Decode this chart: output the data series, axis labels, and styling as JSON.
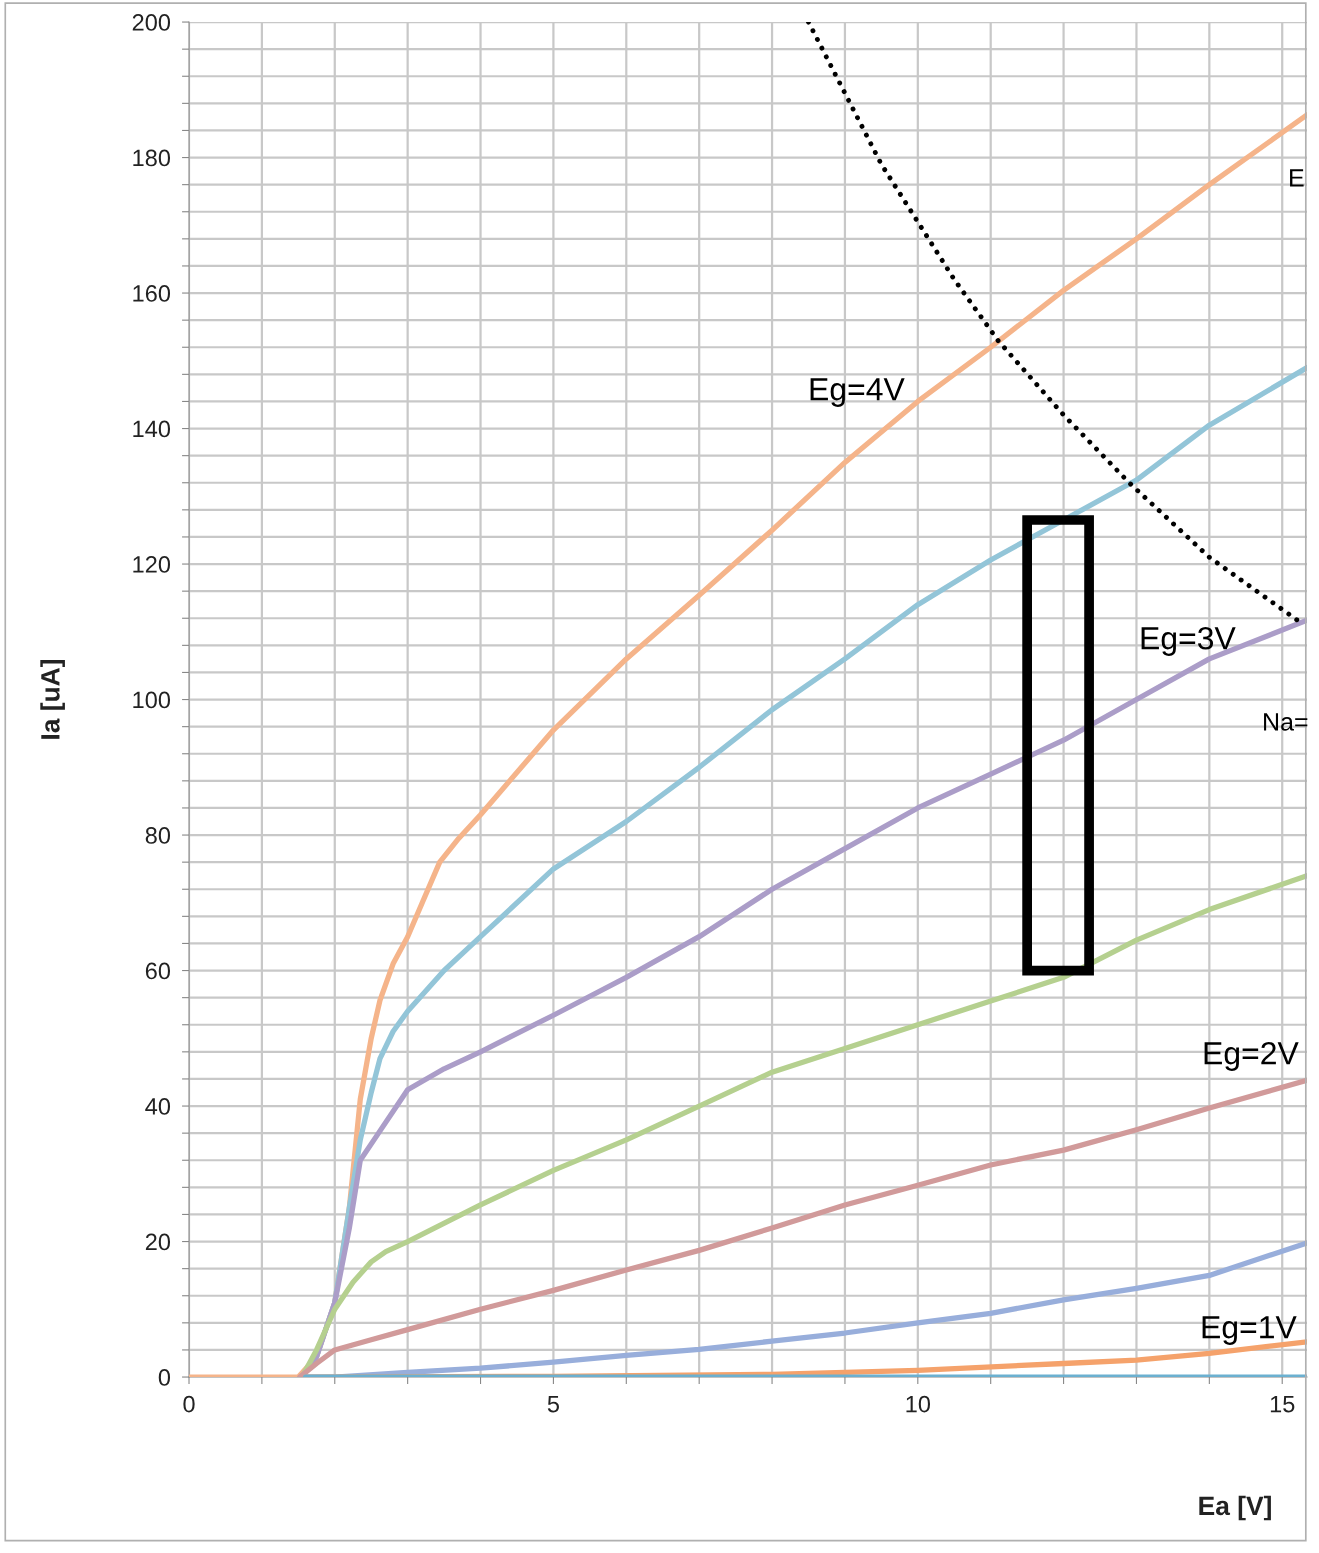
{
  "chart_data": {
    "type": "line",
    "xlabel": "Ea [V]",
    "ylabel": "Ia [uA]",
    "xlim": [
      0,
      15.34
    ],
    "ylim": [
      0,
      200
    ],
    "xticks": [
      0,
      {
        "value": 1,
        "label": null
      },
      {
        "value": 2,
        "label": null
      },
      {
        "value": 3,
        "label": null
      },
      {
        "value": 4,
        "label": null
      },
      5,
      {
        "value": 6,
        "label": null
      },
      {
        "value": 7,
        "label": null
      },
      {
        "value": 8,
        "label": null
      },
      {
        "value": 9,
        "label": null
      },
      10,
      {
        "value": 11,
        "label": null
      },
      {
        "value": 12,
        "label": null
      },
      {
        "value": 13,
        "label": null
      },
      {
        "value": 14,
        "label": null
      },
      15
    ],
    "yticks": [
      0,
      {
        "value": 4,
        "label": null
      },
      {
        "value": 8,
        "label": null
      },
      {
        "value": 12,
        "label": null
      },
      {
        "value": 16,
        "label": null
      },
      20,
      {
        "value": 24,
        "label": null
      },
      {
        "value": 28,
        "label": null
      },
      {
        "value": 32,
        "label": null
      },
      {
        "value": 36,
        "label": null
      },
      40,
      {
        "value": 44,
        "label": null
      },
      {
        "value": 48,
        "label": null
      },
      {
        "value": 52,
        "label": null
      },
      {
        "value": 56,
        "label": null
      },
      60,
      {
        "value": 64,
        "label": null
      },
      {
        "value": 68,
        "label": null
      },
      {
        "value": 72,
        "label": null
      },
      {
        "value": 76,
        "label": null
      },
      80,
      {
        "value": 84,
        "label": null
      },
      {
        "value": 88,
        "label": null
      },
      {
        "value": 92,
        "label": null
      },
      {
        "value": 96,
        "label": null
      },
      100,
      {
        "value": 104,
        "label": null
      },
      {
        "value": 108,
        "label": null
      },
      {
        "value": 112,
        "label": null
      },
      {
        "value": 116,
        "label": null
      },
      120,
      {
        "value": 124,
        "label": null
      },
      {
        "value": 128,
        "label": null
      },
      {
        "value": 132,
        "label": null
      },
      {
        "value": 136,
        "label": null
      },
      140,
      {
        "value": 144,
        "label": null
      },
      {
        "value": 148,
        "label": null
      },
      {
        "value": 152,
        "label": null
      },
      {
        "value": 156,
        "label": null
      },
      160,
      {
        "value": 164,
        "label": null
      },
      {
        "value": 168,
        "label": null
      },
      {
        "value": 172,
        "label": null
      },
      {
        "value": 176,
        "label": null
      },
      180,
      {
        "value": 184,
        "label": null
      },
      {
        "value": 188,
        "label": null
      },
      {
        "value": 192,
        "label": null
      },
      {
        "value": 196,
        "label": null
      },
      200
    ],
    "grid": true,
    "marker": "none",
    "line_style": "solid",
    "series": [
      {
        "color": "#f5b48a",
        "x": [
          0,
          1.5,
          1.75,
          2,
          2.2,
          2.35,
          2.5,
          2.62,
          2.8,
          3,
          3.2,
          3.44,
          3.7,
          4,
          5,
          6,
          7,
          8,
          9,
          10,
          11,
          12,
          13,
          14,
          15.34
        ],
        "values": [
          0,
          0,
          3,
          11,
          25,
          41,
          50,
          55.6,
          61,
          65,
          70,
          76,
          79.5,
          83,
          95.5,
          106,
          115.4,
          125,
          135,
          144,
          152,
          160.4,
          168,
          176,
          186.3
        ]
      },
      {
        "color": "#93c5d8",
        "x": [
          1.55,
          1.75,
          2,
          2.2,
          2.35,
          2.5,
          2.62,
          2.8,
          3,
          3.5,
          4,
          5,
          6,
          7,
          8,
          9,
          10,
          11,
          12,
          13,
          14,
          15.34
        ],
        "values": [
          0,
          3,
          11,
          25,
          35,
          42,
          47,
          51,
          54,
          60,
          65,
          75,
          82,
          90,
          98.5,
          106,
          114,
          120.6,
          126.5,
          132.4,
          140.5,
          149
        ]
      },
      {
        "color": "#ab9dc8",
        "x": [
          1.55,
          1.75,
          2,
          2.2,
          2.35,
          2.6,
          3,
          3.5,
          4,
          5,
          6,
          7,
          8,
          9,
          10,
          11,
          12,
          13,
          14,
          15.34
        ],
        "values": [
          0,
          3,
          11,
          22,
          32,
          36,
          42.4,
          45.5,
          48,
          53.4,
          59,
          65,
          72,
          78,
          84,
          89,
          94,
          100,
          106,
          111.7
        ]
      },
      {
        "color": "#b5d08f",
        "x": [
          1.55,
          1.75,
          2,
          2.25,
          2.5,
          2.7,
          3,
          4,
          5,
          6,
          7,
          8,
          9,
          10,
          11,
          12,
          13,
          14,
          15.34
        ],
        "values": [
          0,
          4,
          10,
          14,
          17,
          18.5,
          20,
          25.4,
          30.5,
          35,
          40,
          45,
          48.5,
          52,
          55.5,
          59,
          64.5,
          69,
          74
        ]
      },
      {
        "color": "#d19a9a",
        "x": [
          1.52,
          1.75,
          2,
          2.5,
          3,
          4,
          5,
          6,
          7,
          8,
          9,
          10,
          11,
          12,
          13,
          14,
          15.34
        ],
        "values": [
          0,
          2,
          4,
          5.5,
          7,
          10,
          12.8,
          15.8,
          18.7,
          22,
          25.4,
          28.3,
          31.3,
          33.5,
          36.5,
          39.7,
          43.8
        ]
      },
      {
        "color": "#98aedb",
        "x": [
          1.6,
          2,
          3,
          4,
          5,
          6,
          7,
          8,
          9,
          10,
          11,
          12,
          13,
          14,
          15.34
        ],
        "values": [
          0,
          0,
          0.7,
          1.3,
          2.2,
          3.2,
          4.1,
          5.3,
          6.5,
          8,
          9.4,
          11.4,
          13.1,
          15,
          19.8
        ]
      },
      {
        "color": "#f5a26b",
        "x": [
          1.6,
          5,
          8,
          10,
          12,
          13,
          14,
          15.34
        ],
        "values": [
          0,
          0.1,
          0.4,
          1,
          2,
          2.5,
          3.5,
          5.2
        ]
      },
      {
        "color": "#6bb0d0",
        "x": [
          1.6,
          15.34
        ],
        "values": [
          0,
          0
        ]
      },
      {
        "color": "#000000",
        "line_style": "dotted",
        "x": [
          8.5,
          9.5,
          10.5,
          11.1,
          12,
          12.9,
          14,
          15.3
        ],
        "values": [
          200,
          179,
          162,
          153,
          142,
          132,
          121,
          111
        ]
      }
    ],
    "annotations": [
      "Eg=4V",
      "Eg=3V",
      "Eg=2V",
      "Eg=1V",
      "E",
      "Na="
    ]
  }
}
